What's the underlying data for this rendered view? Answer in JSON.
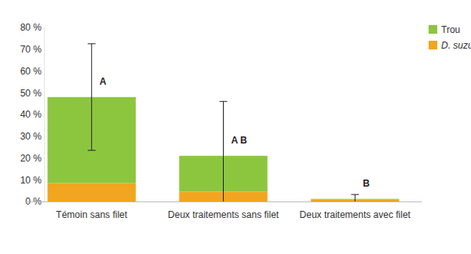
{
  "chart_data": {
    "type": "bar",
    "stacked": true,
    "categories": [
      "Témoin sans filet",
      "Deux traitements sans filet",
      "Deux traitements avec filet"
    ],
    "series": [
      {
        "name": "D. suzukii",
        "color": "#f2a51f",
        "values": [
          8.5,
          4.5,
          1.0
        ]
      },
      {
        "name": "Trou",
        "color": "#8cc63f",
        "values": [
          39.5,
          16.5,
          0.2
        ]
      }
    ],
    "errors": [
      24.5,
      25,
      2
    ],
    "annotations": [
      "A",
      "A B",
      "B"
    ],
    "ylim": [
      0,
      80
    ],
    "yticks": [
      {
        "value": 0,
        "label": "0 %"
      },
      {
        "value": 10,
        "label": "10 %"
      },
      {
        "value": 20,
        "label": "20 %"
      },
      {
        "value": 30,
        "label": "30 %"
      },
      {
        "value": 40,
        "label": "40 %"
      },
      {
        "value": 50,
        "label": "50 %"
      },
      {
        "value": 60,
        "label": "60 %"
      },
      {
        "value": 70,
        "label": "70 %"
      },
      {
        "value": 80,
        "label": "80 %"
      }
    ],
    "grid": false,
    "legend": "top-right"
  }
}
